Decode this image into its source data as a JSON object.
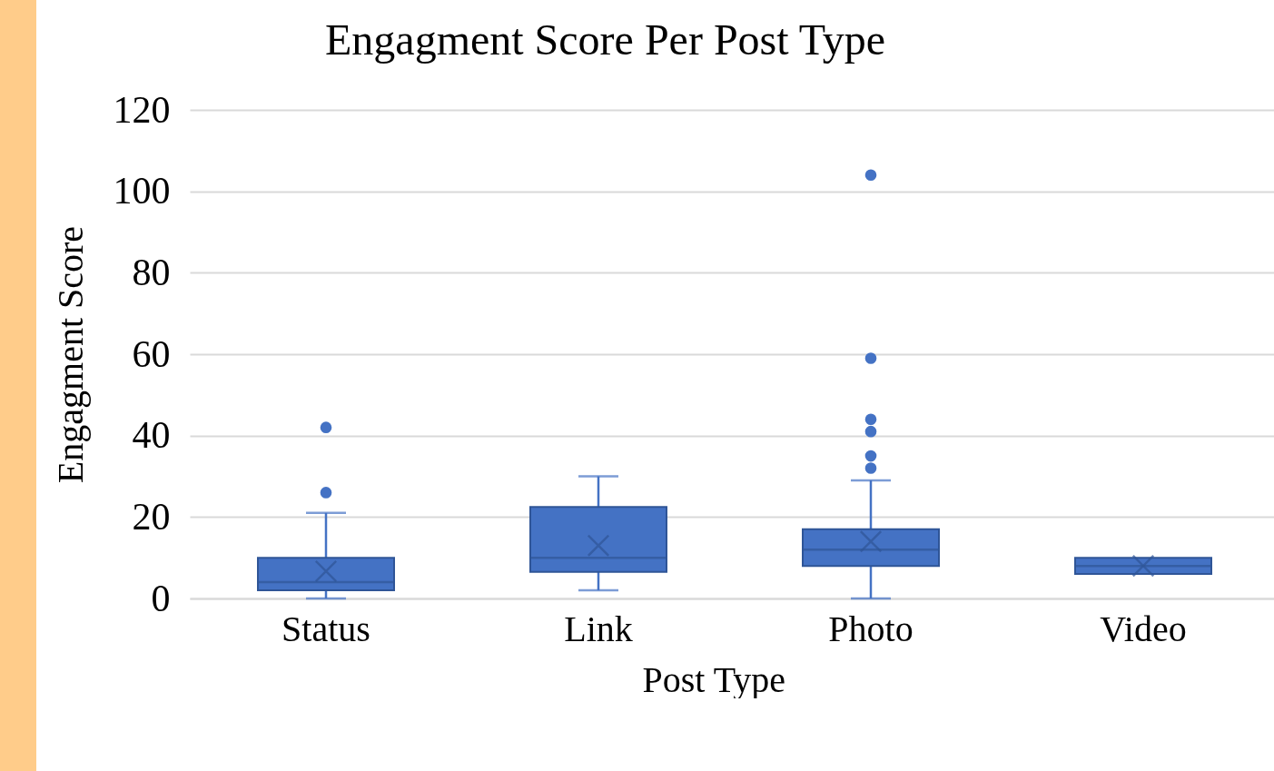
{
  "chart_data": {
    "type": "box",
    "title": "Engagment Score Per Post Type",
    "xlabel": "Post Type",
    "ylabel": "Engagment Score",
    "categories": [
      "Status",
      "Link",
      "Photo",
      "Video"
    ],
    "color": "#4472c4",
    "boxes": [
      {
        "low": 0,
        "q1": 2,
        "median": 4,
        "q3": 10,
        "high": 21,
        "mean": 6.7,
        "outliers": [
          26,
          42
        ]
      },
      {
        "low": 2,
        "q1": 6.5,
        "median": 10,
        "q3": 22.5,
        "high": 30,
        "mean": 13
      },
      {
        "low": 0,
        "q1": 8,
        "median": 12,
        "q3": 17,
        "high": 29,
        "mean": 14,
        "outliers": [
          32,
          35,
          41,
          44,
          59,
          104
        ]
      },
      {
        "low": 6,
        "q1": 6,
        "median": 8,
        "q3": 10,
        "high": 10,
        "mean": 8
      }
    ],
    "ylim": [
      0,
      120
    ],
    "yticks": [
      0,
      20,
      40,
      60,
      80,
      100,
      120
    ],
    "grid": "y"
  }
}
